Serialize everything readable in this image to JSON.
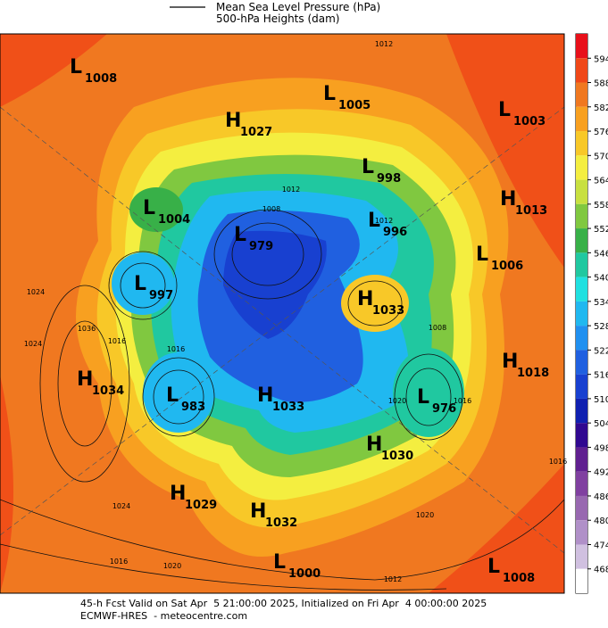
{
  "legend": [
    "Mean Sea Level Pressure (hPa)",
    "500-hPa Heights (dam)"
  ],
  "centers": [
    {
      "kind": "L",
      "value": "1008"
    },
    {
      "kind": "H",
      "value": "1027"
    },
    {
      "kind": "L",
      "value": "1005"
    },
    {
      "kind": "L",
      "value": "1003"
    },
    {
      "kind": "L",
      "value": "998"
    },
    {
      "kind": "H",
      "value": "1013"
    },
    {
      "kind": "L",
      "value": "1004"
    },
    {
      "kind": "L",
      "value": "979"
    },
    {
      "kind": "L",
      "value": "996"
    },
    {
      "kind": "L",
      "value": "1006"
    },
    {
      "kind": "L",
      "value": "997"
    },
    {
      "kind": "H",
      "value": "1033"
    },
    {
      "kind": "H",
      "value": "1018"
    },
    {
      "kind": "H",
      "value": "1034"
    },
    {
      "kind": "L",
      "value": "983"
    },
    {
      "kind": "H",
      "value": "1033"
    },
    {
      "kind": "L",
      "value": "976"
    },
    {
      "kind": "H",
      "value": "1030"
    },
    {
      "kind": "H",
      "value": "1029"
    },
    {
      "kind": "H",
      "value": "1032"
    },
    {
      "kind": "L",
      "value": "1000"
    },
    {
      "kind": "L",
      "value": "1008"
    }
  ],
  "contour_labels": [
    "1012",
    "1012",
    "1008",
    "1036",
    "1024",
    "1016",
    "1016",
    "1012",
    "1008",
    "1024",
    "1020",
    "1016",
    "1012",
    "1016",
    "1020",
    "1024",
    "1020",
    "1016"
  ],
  "colorbar": {
    "ticks": [
      594,
      588,
      582,
      576,
      570,
      564,
      558,
      552,
      546,
      540,
      534,
      528,
      522,
      516,
      510,
      504,
      498,
      492,
      486,
      480,
      474,
      468
    ],
    "colors": [
      "#e8101a",
      "#f04818",
      "#f07820",
      "#f8a020",
      "#f8c828",
      "#f4ee40",
      "#c8e040",
      "#80c840",
      "#38b048",
      "#20c8a0",
      "#20e0e0",
      "#20b8f0",
      "#2090f0",
      "#2060e0",
      "#1840d0",
      "#1020b0",
      "#300890",
      "#602090",
      "#8040a0",
      "#9868b0",
      "#b090c8",
      "#d0c0e0",
      "#ffffff"
    ]
  },
  "footer": [
    "45-h Fcst Valid on Sat Apr  5 21:00:00 2025, Initialized on Fri Apr  4 00:00:00 2025",
    "ECMWF-HRES  - meteocentre.com"
  ]
}
